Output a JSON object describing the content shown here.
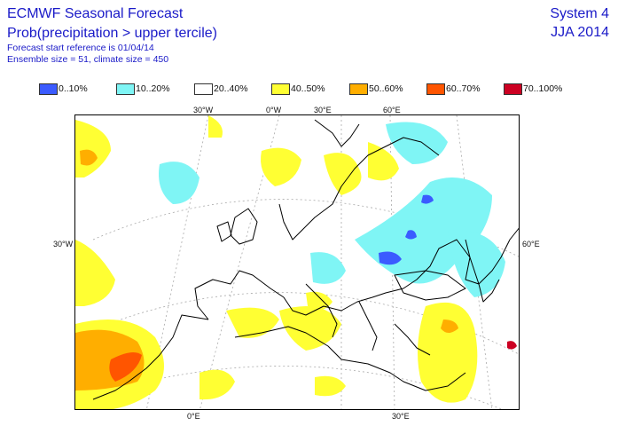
{
  "header": {
    "title": "ECMWF Seasonal Forecast",
    "subtitle": "Prob(precipitation > upper tercile)",
    "forecast_start": "Forecast start reference is 01/04/14",
    "ensemble": "Ensemble size = 51, climate size = 450",
    "system": "System 4",
    "season": "JJA 2014"
  },
  "legend": [
    {
      "label": "0..10%",
      "color": "#3b5bff"
    },
    {
      "label": "10..20%",
      "color": "#7ff5f5"
    },
    {
      "label": "20..40%",
      "color": "#ffffff"
    },
    {
      "label": "40..50%",
      "color": "#ffff33"
    },
    {
      "label": "50..60%",
      "color": "#ffae00"
    },
    {
      "label": "60..70%",
      "color": "#ff5500"
    },
    {
      "label": "70..100%",
      "color": "#cc0022"
    }
  ],
  "map": {
    "lon_labels_top": [
      "30°W",
      "0°W",
      "30°E",
      "60°E"
    ],
    "lon_labels_bottom": [
      "0°E",
      "30°E"
    ],
    "lat_labels_side": [
      "30°W",
      "60°E"
    ]
  }
}
